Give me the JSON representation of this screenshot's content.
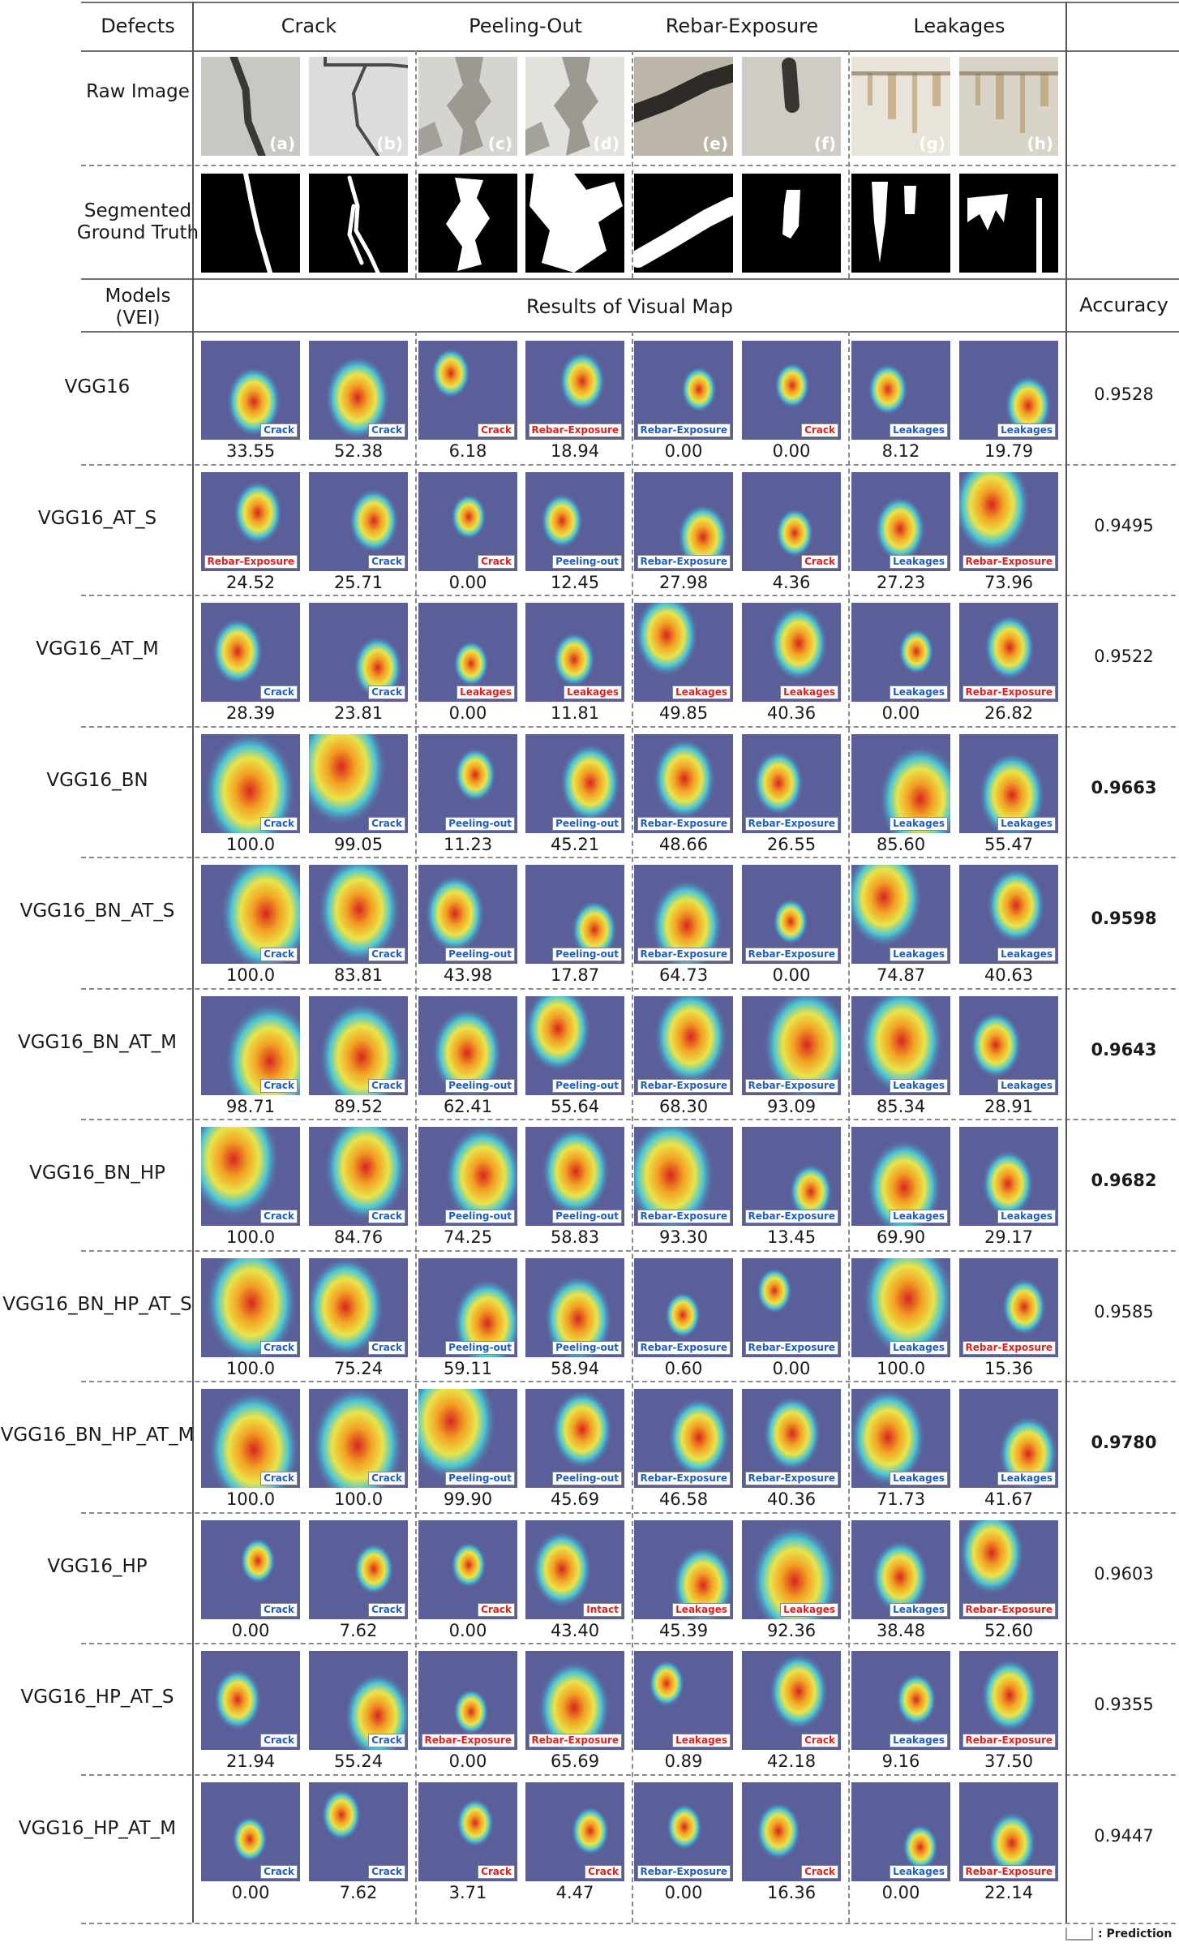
{
  "header": {
    "defects": "Defects",
    "categories": [
      "Crack",
      "Peeling-Out",
      "Rebar-Exposure",
      "Leakages"
    ],
    "raw_image": "Raw Image",
    "segmented_gt": "Segmented Ground Truth",
    "models": "Models (VEI)",
    "results": "Results of Visual Map",
    "accuracy": "Accuracy"
  },
  "images": [
    "(a)",
    "(b)",
    "(c)",
    "(d)",
    "(e)",
    "(f)",
    "(g)",
    "(h)"
  ],
  "rows": [
    {
      "model": "VGG16",
      "accuracy": "0.9528",
      "bold": false,
      "preds": [
        "Crack",
        "Crack",
        "Crack",
        "Rebar-Exposure",
        "Rebar-Exposure",
        "Crack",
        "Leakages",
        "Leakages"
      ],
      "values": [
        "33.55",
        "52.38",
        "6.18",
        "18.94",
        "0.00",
        "0.00",
        "8.12",
        "19.79"
      ]
    },
    {
      "model": "VGG16_AT_S",
      "accuracy": "0.9495",
      "bold": false,
      "preds": [
        "Rebar-Exposure",
        "Crack",
        "Crack",
        "Peeling-out",
        "Rebar-Exposure",
        "Crack",
        "Leakages",
        "Rebar-Exposure"
      ],
      "values": [
        "24.52",
        "25.71",
        "0.00",
        "12.45",
        "27.98",
        "4.36",
        "27.23",
        "73.96"
      ]
    },
    {
      "model": "VGG16_AT_M",
      "accuracy": "0.9522",
      "bold": false,
      "preds": [
        "Crack",
        "Crack",
        "Leakages",
        "Leakages",
        "Leakages",
        "Leakages",
        "Leakages",
        "Rebar-Exposure"
      ],
      "values": [
        "28.39",
        "23.81",
        "0.00",
        "11.81",
        "49.85",
        "40.36",
        "0.00",
        "26.82"
      ]
    },
    {
      "model": "VGG16_BN",
      "accuracy": "0.9663",
      "bold": true,
      "preds": [
        "Crack",
        "Crack",
        "Peeling-out",
        "Peeling-out",
        "Rebar-Exposure",
        "Rebar-Exposure",
        "Leakages",
        "Leakages"
      ],
      "values": [
        "100.0",
        "99.05",
        "11.23",
        "45.21",
        "48.66",
        "26.55",
        "85.60",
        "55.47"
      ]
    },
    {
      "model": "VGG16_BN_AT_S",
      "accuracy": "0.9598",
      "bold": true,
      "preds": [
        "Crack",
        "Crack",
        "Peeling-out",
        "Peeling-out",
        "Rebar-Exposure",
        "Rebar-Exposure",
        "Leakages",
        "Leakages"
      ],
      "values": [
        "100.0",
        "83.81",
        "43.98",
        "17.87",
        "64.73",
        "0.00",
        "74.87",
        "40.63"
      ]
    },
    {
      "model": "VGG16_BN_AT_M",
      "accuracy": "0.9643",
      "bold": true,
      "preds": [
        "Crack",
        "Crack",
        "Peeling-out",
        "Peeling-out",
        "Rebar-Exposure",
        "Rebar-Exposure",
        "Leakages",
        "Leakages"
      ],
      "values": [
        "98.71",
        "89.52",
        "62.41",
        "55.64",
        "68.30",
        "93.09",
        "85.34",
        "28.91"
      ]
    },
    {
      "model": "VGG16_BN_HP",
      "accuracy": "0.9682",
      "bold": true,
      "preds": [
        "Crack",
        "Crack",
        "Peeling-out",
        "Peeling-out",
        "Rebar-Exposure",
        "Rebar-Exposure",
        "Leakages",
        "Leakages"
      ],
      "values": [
        "100.0",
        "84.76",
        "74.25",
        "58.83",
        "93.30",
        "13.45",
        "69.90",
        "29.17"
      ]
    },
    {
      "model": "VGG16_BN_HP_AT_S",
      "accuracy": "0.9585",
      "bold": false,
      "preds": [
        "Crack",
        "Crack",
        "Peeling-out",
        "Peeling-out",
        "Rebar-Exposure",
        "Rebar-Exposure",
        "Leakages",
        "Rebar-Exposure"
      ],
      "values": [
        "100.0",
        "75.24",
        "59.11",
        "58.94",
        "0.60",
        "0.00",
        "100.0",
        "15.36"
      ]
    },
    {
      "model": "VGG16_BN_HP_AT_M",
      "accuracy": "0.9780",
      "bold": true,
      "preds": [
        "Crack",
        "Crack",
        "Peeling-out",
        "Peeling-out",
        "Rebar-Exposure",
        "Rebar-Exposure",
        "Leakages",
        "Leakages"
      ],
      "values": [
        "100.0",
        "100.0",
        "99.90",
        "45.69",
        "46.58",
        "40.36",
        "71.73",
        "41.67"
      ]
    },
    {
      "model": "VGG16_HP",
      "accuracy": "0.9603",
      "bold": false,
      "preds": [
        "Crack",
        "Crack",
        "Crack",
        "Intact",
        "Leakages",
        "Leakages",
        "Leakages",
        "Rebar-Exposure"
      ],
      "values": [
        "0.00",
        "7.62",
        "0.00",
        "43.40",
        "45.39",
        "92.36",
        "38.48",
        "52.60"
      ]
    },
    {
      "model": "VGG16_HP_AT_S",
      "accuracy": "0.9355",
      "bold": false,
      "preds": [
        "Crack",
        "Crack",
        "Rebar-Exposure",
        "Rebar-Exposure",
        "Leakages",
        "Crack",
        "Leakages",
        "Rebar-Exposure"
      ],
      "values": [
        "21.94",
        "55.24",
        "0.00",
        "65.69",
        "0.89",
        "42.18",
        "9.16",
        "37.50"
      ]
    },
    {
      "model": "VGG16_HP_AT_M",
      "accuracy": "0.9447",
      "bold": false,
      "preds": [
        "Crack",
        "Crack",
        "Crack",
        "Crack",
        "Rebar-Exposure",
        "Crack",
        "Leakages",
        "Rebar-Exposure"
      ],
      "values": [
        "0.00",
        "7.62",
        "3.71",
        "4.47",
        "0.00",
        "16.36",
        "0.00",
        "22.14"
      ]
    }
  ],
  "legend": ": Prediction",
  "colors": {
    "correct": "#1f5fbf",
    "wrong": "#e02020"
  }
}
